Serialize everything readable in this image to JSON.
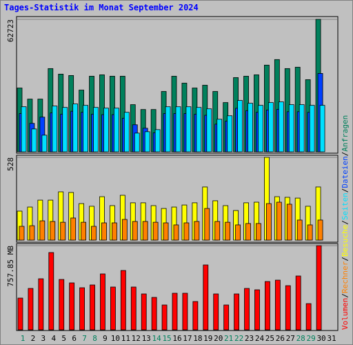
{
  "title": "Tages-Statistik im Monat September 2024",
  "legend_separator": "/",
  "chart_data": [
    {
      "type": "bar",
      "ylim": [
        0,
        62723
      ],
      "yticks": [
        62723
      ],
      "series": [
        {
          "name": "Anfragen",
          "color": "#00805c",
          "values": [
            30212,
            24958,
            24958,
            39407,
            36780,
            36123,
            29227,
            35795,
            36451,
            35795,
            35795,
            22331,
            20032,
            20032,
            28570,
            35795,
            32511,
            30212,
            31525,
            28570,
            23316,
            35138,
            35795,
            36451,
            41049,
            43676,
            39407,
            40064,
            34153,
            62723,
            null
          ]
        },
        {
          "name": "Dateien",
          "color": "#0040ff",
          "values": [
            18100,
            13464,
            16420,
            18400,
            17800,
            19200,
            18700,
            17800,
            17600,
            17600,
            15900,
            12807,
            11165,
            9000,
            18100,
            18100,
            18100,
            17800,
            17300,
            13100,
            14500,
            20600,
            19500,
            18700,
            19800,
            20100,
            19000,
            19000,
            18700,
            37108,
            null
          ]
        },
        {
          "name": "Seiten",
          "color": "#00e0ff",
          "values": [
            21345,
            10837,
            7881,
            21674,
            21017,
            22659,
            22002,
            21017,
            20689,
            20689,
            18718,
            8867,
            9523,
            10508,
            21345,
            21345,
            21345,
            21017,
            20360,
            15434,
            17076,
            24301,
            22987,
            22002,
            23316,
            23644,
            22331,
            22331,
            22002,
            22002,
            null
          ]
        }
      ]
    },
    {
      "type": "bar",
      "ylim": [
        0,
        528
      ],
      "yticks": [
        528
      ],
      "series": [
        {
          "name": "Besuche",
          "color": "#ffff00",
          "values": [
            185,
            211,
            255,
            255,
            308,
            304,
            233,
            216,
            277,
            220,
            286,
            238,
            238,
            220,
            202,
            211,
            224,
            238,
            339,
            251,
            220,
            189,
            238,
            242,
            528,
            277,
            273,
            268,
            216,
            339,
            null
          ]
        },
        {
          "name": "Rechner",
          "color": "#ff8000",
          "values": [
            88,
            92,
            123,
            119,
            114,
            141,
            114,
            88,
            110,
            110,
            132,
            119,
            119,
            114,
            110,
            97,
            110,
            119,
            202,
            119,
            114,
            97,
            106,
            106,
            233,
            242,
            229,
            128,
            97,
            128,
            null
          ]
        }
      ]
    },
    {
      "type": "bar",
      "ylim": [
        0,
        757.85
      ],
      "yticks": [
        {
          "value": 757.85,
          "label": "757.85 MB"
        }
      ],
      "categories": [
        "1",
        "2",
        "3",
        "4",
        "5",
        "6",
        "7",
        "8",
        "9",
        "10",
        "11",
        "12",
        "13",
        "14",
        "15",
        "16",
        "17",
        "18",
        "19",
        "20",
        "21",
        "22",
        "23",
        "24",
        "25",
        "26",
        "27",
        "28",
        "29",
        "30",
        "31"
      ],
      "category_colors": [
        "#00805c",
        "#000000",
        "#000000",
        "#000000",
        "#000000",
        "#000000",
        "#00805c",
        "#00805c",
        "#000000",
        "#000000",
        "#000000",
        "#000000",
        "#000000",
        "#00805c",
        "#00805c",
        "#000000",
        "#000000",
        "#000000",
        "#000000",
        "#000000",
        "#00805c",
        "#00805c",
        "#000000",
        "#000000",
        "#000000",
        "#000000",
        "#000000",
        "#00805c",
        "#00805c",
        "#000000",
        "#000000"
      ],
      "series": [
        {
          "name": "Volumen",
          "color": "#ff0000",
          "values": [
            285.75,
            372.72,
            459.69,
            695.74,
            453.48,
            422.42,
            378.93,
            403.78,
            503.17,
            385.14,
            534.23,
            385.14,
            323.02,
            291.96,
            223.63,
            329.24,
            329.24,
            254.69,
            583.93,
            323.02,
            223.63,
            323.02,
            372.72,
            360.3,
            434.84,
            447.27,
            397.57,
            484.54,
            236.06,
            757.85,
            null
          ]
        }
      ]
    }
  ]
}
